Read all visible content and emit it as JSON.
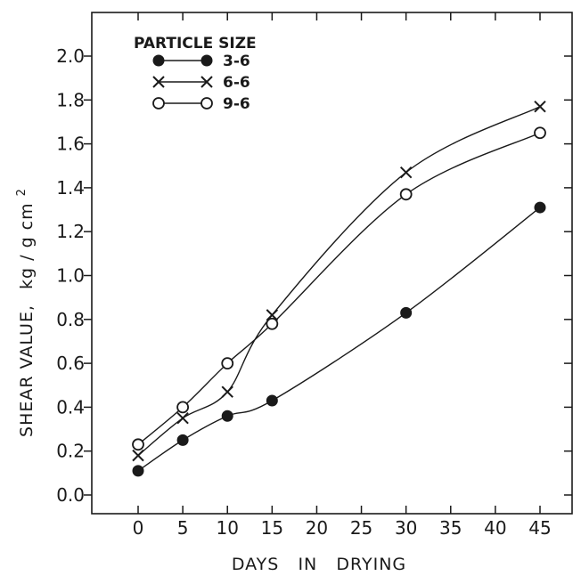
{
  "chart_data": {
    "type": "line",
    "xlabel": "DAYS   IN   DRYING",
    "ylabel_parts": [
      "SHEAR VALUE,",
      "kg / g cm",
      "2"
    ],
    "x_ticks": [
      "0",
      "5",
      "10",
      "15",
      "20",
      "25",
      "30",
      "35",
      "40",
      "45"
    ],
    "y_ticks": [
      "0.0",
      "0.2",
      "0.4",
      "0.6",
      "0.8",
      "1.0",
      "1.2",
      "1.4",
      "1.6",
      "1.8",
      "2.0"
    ],
    "xlim": [
      -7,
      49
    ],
    "ylim": [
      -0.1,
      2.2
    ],
    "grid": false,
    "legend_title": "PARTICLE SIZE",
    "legend_position": "top-left",
    "series": [
      {
        "name": "3-6",
        "marker": "filled-circle",
        "x": [
          0,
          5,
          10,
          15,
          30,
          45
        ],
        "y": [
          0.11,
          0.25,
          0.36,
          0.43,
          0.83,
          1.31
        ]
      },
      {
        "name": "6-6",
        "marker": "cross",
        "x": [
          0,
          5,
          10,
          15,
          30,
          45
        ],
        "y": [
          0.18,
          0.35,
          0.47,
          0.82,
          1.47,
          1.77
        ]
      },
      {
        "name": "9-6",
        "marker": "open-circle",
        "x": [
          0,
          5,
          10,
          15,
          30,
          45
        ],
        "y": [
          0.23,
          0.4,
          0.6,
          0.78,
          1.37,
          1.65
        ]
      }
    ]
  }
}
